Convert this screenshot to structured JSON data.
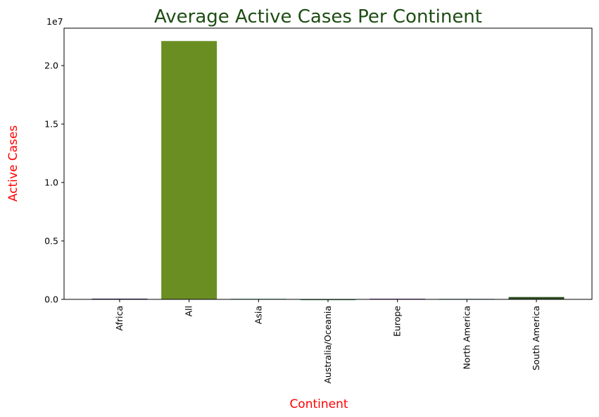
{
  "chart_data": {
    "type": "bar",
    "title": "Average Active Cases Per Continent",
    "xlabel": "Continent",
    "ylabel": "Active Cases",
    "offset_text": "1e7",
    "categories": [
      "Africa",
      "All",
      "Asia",
      "Australia/Oceania",
      "Europe",
      "North America",
      "South America"
    ],
    "values": [
      60000,
      22100000,
      45000,
      5000,
      55000,
      40000,
      200000
    ],
    "bar_colors": [
      "#1b1b6e",
      "#6b8e23",
      "#1f8a7a",
      "#3a8a5a",
      "#6a2a8a",
      "#1f7a8a",
      "#2f4f1f"
    ],
    "yticks": [
      0.0,
      0.5,
      1.0,
      1.5,
      2.0
    ],
    "ytick_labels": [
      "0.0",
      "0.5",
      "1.0",
      "1.5",
      "2.0"
    ],
    "ylim": [
      0,
      23200000
    ],
    "grid": false,
    "colors": {
      "title": "#1e4d14",
      "axis_label": "#ff0000"
    }
  }
}
